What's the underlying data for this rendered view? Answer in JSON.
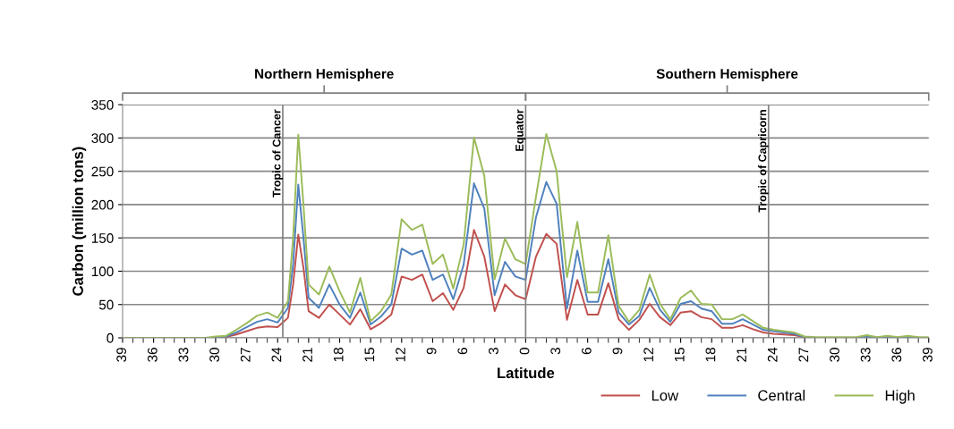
{
  "chart_data": {
    "type": "line",
    "xlabel": "Latitude",
    "ylabel": "Carbon (million tons)",
    "annotations": [
      "Northern Hemisphere",
      "Southern Hemisphere"
    ],
    "x": [
      39,
      38,
      37,
      36,
      35,
      34,
      33,
      32,
      31,
      30,
      29,
      28,
      27,
      26,
      25,
      24,
      23,
      22.5,
      22,
      21.5,
      21,
      20,
      19,
      18,
      17,
      16,
      15,
      14,
      13,
      12,
      11,
      10,
      9,
      8,
      7,
      6,
      5,
      4,
      3,
      2,
      1,
      0,
      -1,
      -2,
      -3,
      -4,
      -5,
      -6,
      -7,
      -8,
      -9,
      -10,
      -11,
      -12,
      -13,
      -14,
      -15,
      -16,
      -17,
      -18,
      -19,
      -20,
      -21,
      -22,
      -23,
      -24,
      -25,
      -26,
      -27,
      -28,
      -29,
      -30,
      -31,
      -32,
      -33,
      -34,
      -35,
      -36,
      -37,
      -38,
      -39
    ],
    "series": [
      {
        "name": "Low",
        "color": "#c0504d",
        "values": [
          null,
          null,
          null,
          null,
          null,
          null,
          null,
          null,
          null,
          0,
          1,
          5,
          10,
          15,
          17,
          16,
          30,
          80,
          155,
          105,
          40,
          30,
          50,
          35,
          20,
          43,
          13,
          22,
          35,
          92,
          87,
          95,
          55,
          67,
          42,
          75,
          162,
          122,
          40,
          80,
          64,
          58,
          122,
          156,
          141,
          27,
          87,
          35,
          35,
          82,
          28,
          12,
          27,
          51,
          31,
          19,
          38,
          40,
          31,
          28,
          15,
          15,
          19,
          13,
          8,
          6,
          5,
          4,
          1,
          0,
          null,
          null,
          null,
          null,
          null,
          null,
          null,
          null,
          null,
          null,
          null
        ]
      },
      {
        "name": "Central",
        "color": "#4f81bd",
        "values": [
          null,
          null,
          null,
          null,
          null,
          null,
          null,
          null,
          null,
          1,
          2,
          8,
          16,
          24,
          28,
          23,
          45,
          110,
          230,
          150,
          60,
          45,
          80,
          50,
          30,
          68,
          20,
          32,
          50,
          134,
          125,
          131,
          87,
          95,
          58,
          110,
          232,
          194,
          64,
          114,
          92,
          87,
          181,
          234,
          201,
          44,
          131,
          54,
          54,
          118,
          38,
          20,
          33,
          75,
          42,
          24,
          51,
          55,
          44,
          40,
          21,
          21,
          28,
          20,
          12,
          10,
          8,
          6,
          1,
          0,
          0,
          0,
          0,
          0,
          2,
          0,
          2,
          0,
          2,
          0,
          0
        ]
      },
      {
        "name": "High",
        "color": "#9bbb59",
        "values": [
          0,
          0,
          0,
          0,
          0,
          0,
          0,
          0,
          0,
          2,
          3,
          12,
          22,
          33,
          38,
          30,
          55,
          150,
          305,
          200,
          80,
          65,
          107,
          70,
          38,
          90,
          25,
          40,
          65,
          178,
          162,
          170,
          111,
          125,
          74,
          140,
          301,
          243,
          88,
          149,
          118,
          111,
          212,
          306,
          250,
          91,
          174,
          68,
          68,
          154,
          48,
          24,
          42,
          95,
          51,
          28,
          60,
          71,
          51,
          50,
          28,
          28,
          35,
          25,
          15,
          12,
          10,
          8,
          2,
          1,
          1,
          1,
          1,
          1,
          4,
          1,
          3,
          1,
          3,
          1,
          1
        ]
      }
    ],
    "xlim": [
      39,
      -39
    ],
    "xticks": [
      39,
      36,
      33,
      30,
      27,
      24,
      21,
      18,
      15,
      12,
      9,
      6,
      3,
      0,
      {
        "value": -3,
        "label": "3"
      },
      {
        "value": -6,
        "label": "6"
      },
      {
        "value": -9,
        "label": "9"
      },
      {
        "value": -12,
        "label": "12"
      },
      {
        "value": -15,
        "label": "15"
      },
      {
        "value": -18,
        "label": "18"
      },
      {
        "value": -21,
        "label": "21"
      },
      {
        "value": -24,
        "label": "24"
      },
      {
        "value": -27,
        "label": "27"
      },
      {
        "value": -30,
        "label": "30"
      },
      {
        "value": -33,
        "label": "33"
      },
      {
        "value": -36,
        "label": "36"
      },
      {
        "value": -39,
        "label": "39"
      }
    ],
    "ylim": [
      0,
      350
    ],
    "yticks": [
      0,
      50,
      100,
      150,
      200,
      250,
      300,
      350
    ],
    "ref_lines": [
      {
        "axis": "x",
        "value": 23.5,
        "label": "Tropic of Cancer",
        "color": "#808080"
      },
      {
        "axis": "x",
        "value": 0,
        "label": "Equator",
        "color": "#808080"
      },
      {
        "axis": "x",
        "value": -23.5,
        "label": "Tropic of Capricorn",
        "color": "#808080"
      }
    ],
    "grid": "y",
    "legend": "bottom right",
    "marker": "none",
    "line_style": "solid"
  }
}
